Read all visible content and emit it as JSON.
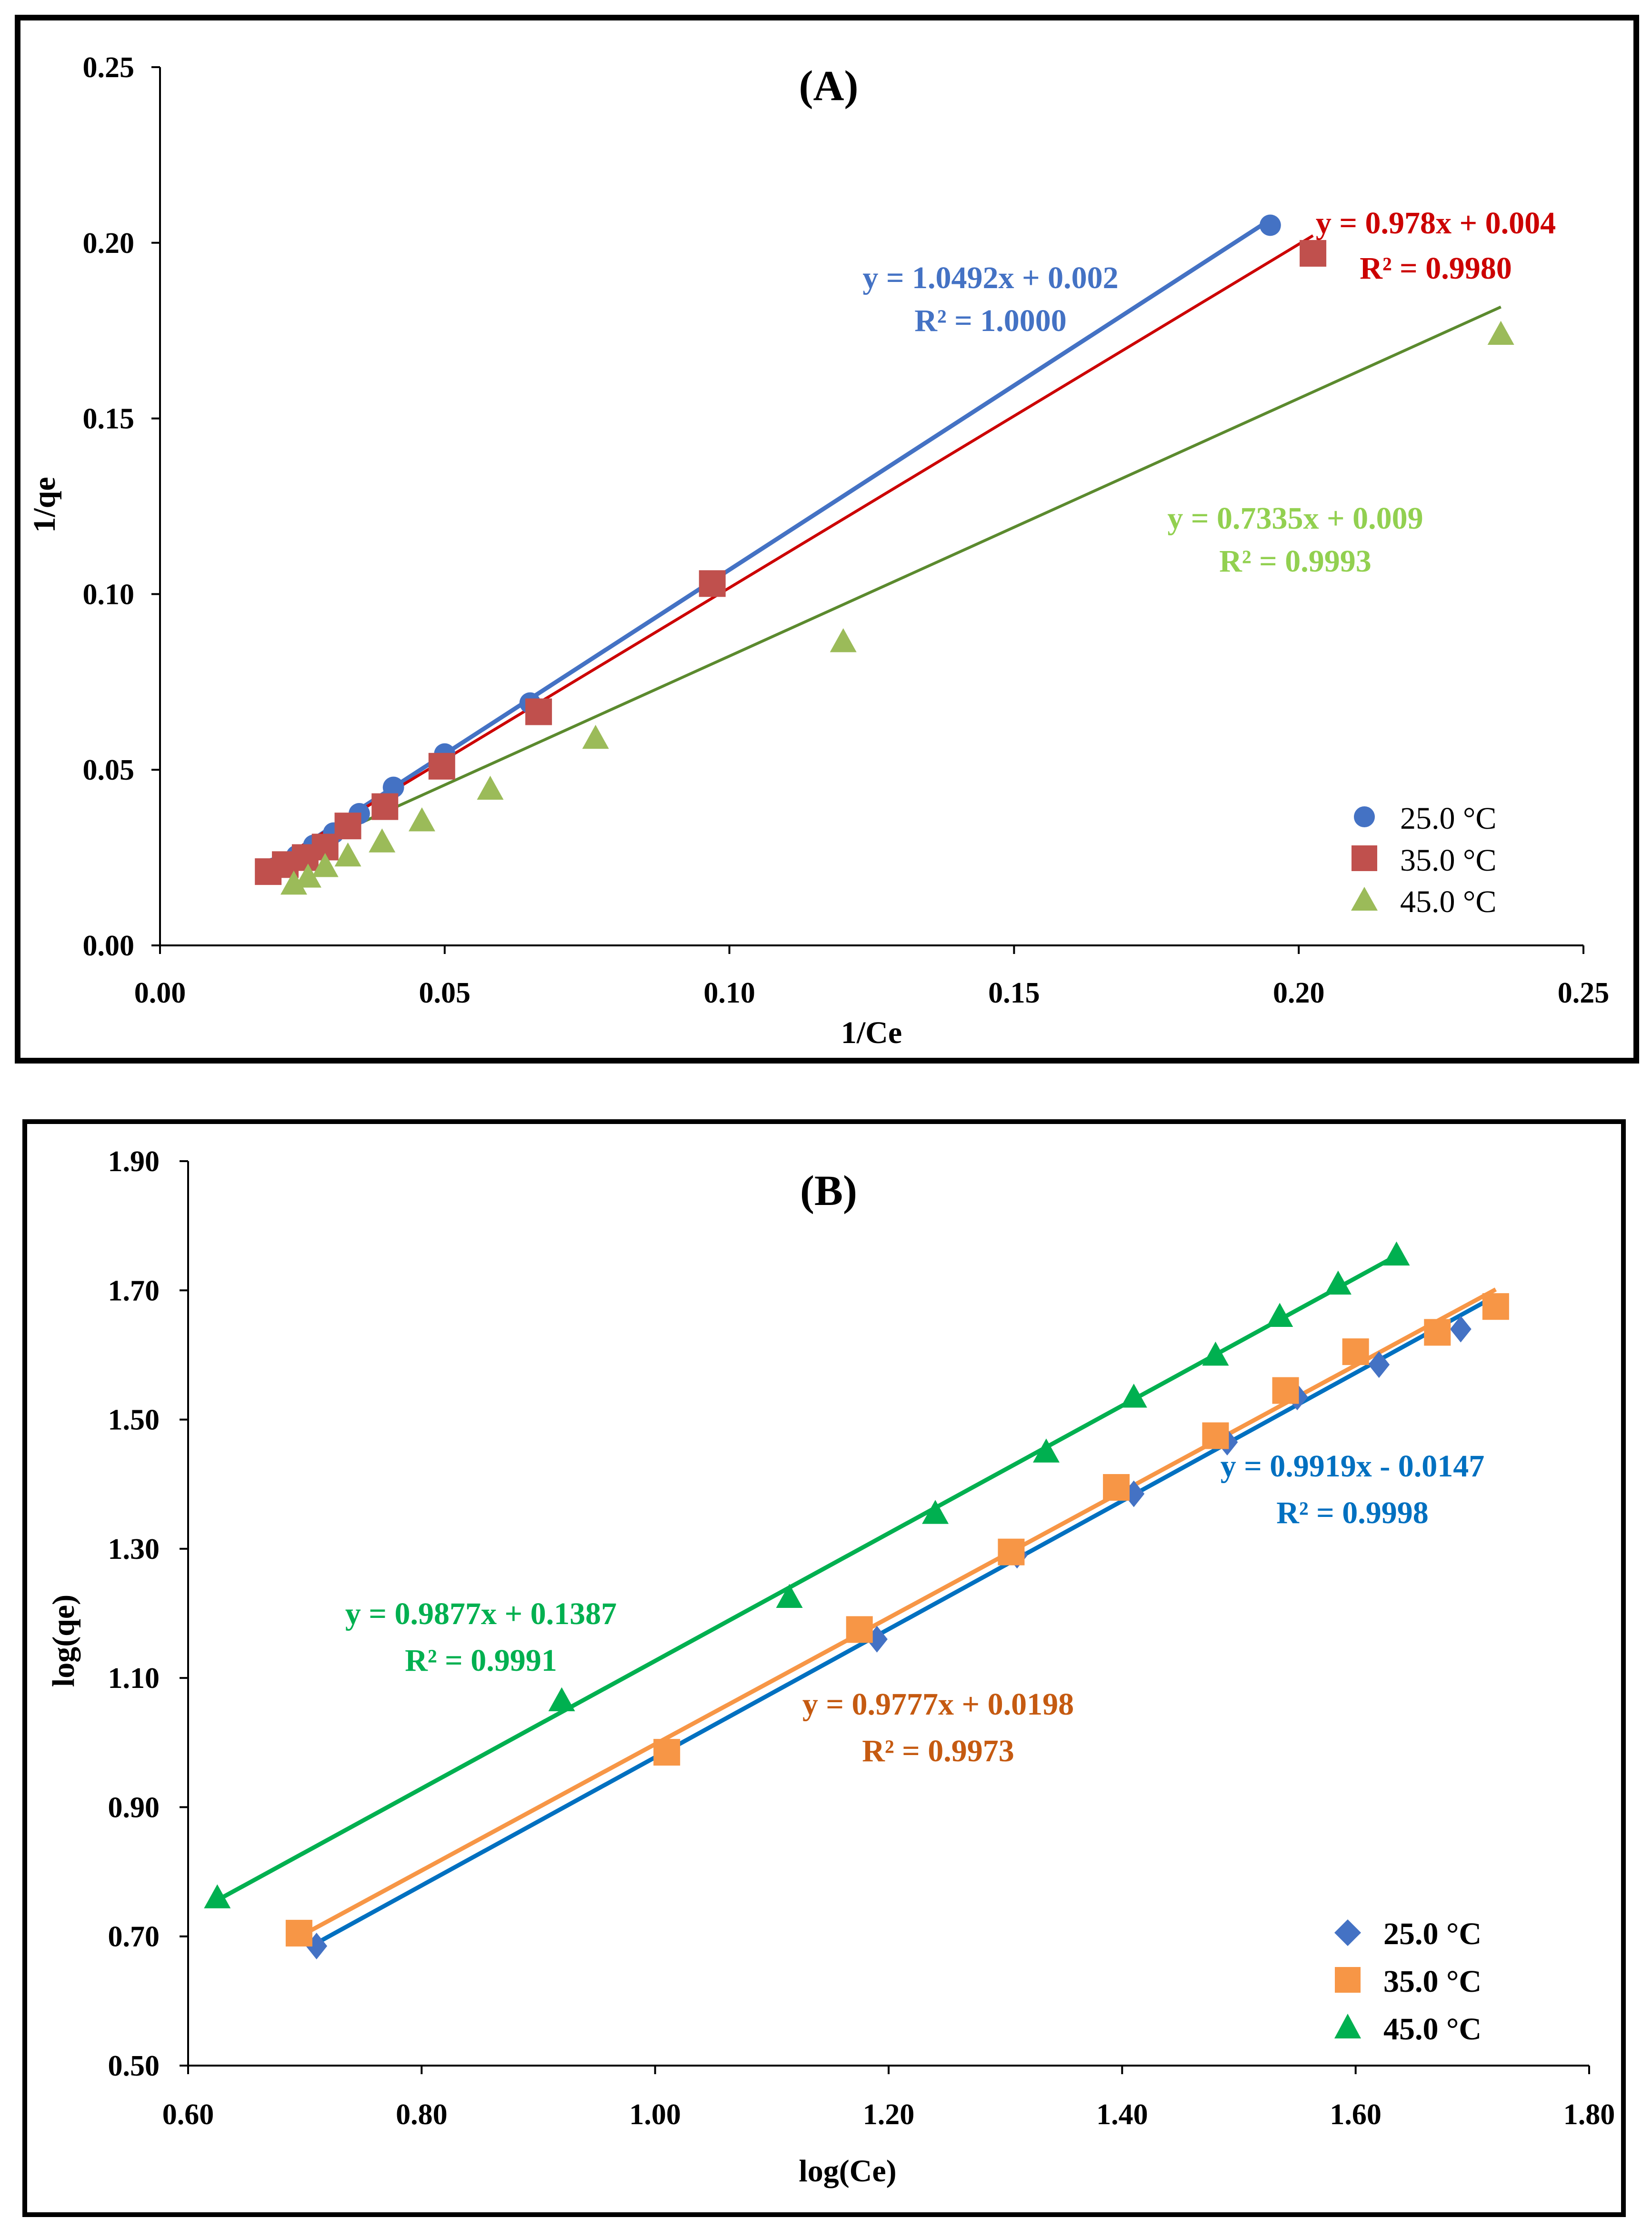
{
  "chart_data": [
    {
      "type": "scatter",
      "title": "(A)",
      "xlabel": "1/Ce",
      "ylabel": "1/qe",
      "xlim": [
        0,
        0.25
      ],
      "ylim": [
        0,
        0.25
      ],
      "xticks": [
        0,
        0.05,
        0.1,
        0.15,
        0.2,
        0.25
      ],
      "xtick_labels": [
        "0.00",
        "0.05",
        "0.10",
        "0.15",
        "0.20",
        "0.25"
      ],
      "yticks": [
        0,
        0.05,
        0.1,
        0.15,
        0.2,
        0.25
      ],
      "ytick_labels": [
        "0.00",
        "0.05",
        "0.10",
        "0.15",
        "0.20",
        "0.25"
      ],
      "legend_position": "bottom-right",
      "series": [
        {
          "name": "25.0 °C",
          "marker": "circle",
          "color": "#4472c4",
          "line_color": "#4472c4",
          "points": [
            [
              0.02,
              0.022
            ],
            [
              0.024,
              0.0255
            ],
            [
              0.027,
              0.0285
            ],
            [
              0.0305,
              0.032
            ],
            [
              0.035,
              0.0375
            ],
            [
              0.041,
              0.045
            ],
            [
              0.05,
              0.0545
            ],
            [
              0.065,
              0.069
            ],
            [
              0.097,
              0.103
            ],
            [
              0.195,
              0.205
            ]
          ],
          "fit": {
            "slope": 1.0492,
            "intercept": 0.002,
            "x_range": [
              0.019,
              0.195
            ]
          },
          "equation": "y = 1.0492x + 0.002",
          "r2": "R² = 1.0000",
          "label_color": "#4472c4"
        },
        {
          "name": "35.0 °C",
          "marker": "square",
          "color": "#c0504d",
          "line_color": "#cc0000",
          "points": [
            [
              0.019,
              0.021
            ],
            [
              0.022,
              0.023
            ],
            [
              0.0255,
              0.025
            ],
            [
              0.029,
              0.028
            ],
            [
              0.033,
              0.034
            ],
            [
              0.0395,
              0.0395
            ],
            [
              0.0495,
              0.051
            ],
            [
              0.0665,
              0.0665
            ],
            [
              0.097,
              0.103
            ],
            [
              0.2025,
              0.197
            ]
          ],
          "fit": {
            "slope": 0.978,
            "intercept": 0.004,
            "x_range": [
              0.019,
              0.2025
            ]
          },
          "equation": "y = 0.978x + 0.004",
          "r2": "R² = 0.9980",
          "label_color": "#cc0000"
        },
        {
          "name": "45.0 °C",
          "marker": "triangle",
          "color": "#9bbb59",
          "line_color": "#5b8a2e",
          "points": [
            [
              0.0235,
              0.0175
            ],
            [
              0.026,
              0.0195
            ],
            [
              0.029,
              0.0225
            ],
            [
              0.033,
              0.0255
            ],
            [
              0.039,
              0.0295
            ],
            [
              0.046,
              0.0355
            ],
            [
              0.058,
              0.0445
            ],
            [
              0.0765,
              0.059
            ],
            [
              0.12,
              0.0865
            ],
            [
              0.2355,
              0.174
            ]
          ],
          "fit": {
            "slope": 0.7335,
            "intercept": 0.009,
            "x_range": [
              0.0235,
              0.2355
            ]
          },
          "equation": "y = 0.7335x + 0.009",
          "r2": "R² = 0.9993",
          "label_color": "#92d050"
        }
      ]
    },
    {
      "type": "scatter",
      "title": "(B)",
      "xlabel": "log(Ce)",
      "ylabel": "log(qe)",
      "xlim": [
        0.6,
        1.8
      ],
      "ylim": [
        0.5,
        1.9
      ],
      "xticks": [
        0.6,
        0.8,
        1.0,
        1.2,
        1.4,
        1.6,
        1.8
      ],
      "xtick_labels": [
        "0.60",
        "0.80",
        "1.00",
        "1.20",
        "1.40",
        "1.60",
        "1.80"
      ],
      "yticks": [
        0.5,
        0.7,
        0.9,
        1.1,
        1.3,
        1.5,
        1.7,
        1.9
      ],
      "ytick_labels": [
        "0.50",
        "0.70",
        "0.90",
        "1.10",
        "1.30",
        "1.50",
        "1.70",
        "1.90"
      ],
      "legend_position": "bottom-right",
      "series": [
        {
          "name": "25.0 °C",
          "marker": "diamond",
          "color": "#4472c4",
          "line_color": "#0070c0",
          "points": [
            [
              0.71,
              0.685
            ],
            [
              1.19,
              1.16
            ],
            [
              1.31,
              1.29
            ],
            [
              1.41,
              1.385
            ],
            [
              1.49,
              1.465
            ],
            [
              1.55,
              1.535
            ],
            [
              1.62,
              1.585
            ],
            [
              1.69,
              1.64
            ],
            [
              1.72,
              1.675
            ]
          ],
          "fit": {
            "slope": 0.9919,
            "intercept": -0.0147,
            "x_range": [
              0.71,
              1.72
            ]
          },
          "equation": "y = 0.9919x - 0.0147",
          "r2": "R² = 0.9998",
          "label_color": "#0070c0"
        },
        {
          "name": "35.0 °C",
          "marker": "square",
          "color": "#f79646",
          "line_color": "#f79646",
          "points": [
            [
              0.695,
              0.705
            ],
            [
              1.01,
              0.985
            ],
            [
              1.175,
              1.175
            ],
            [
              1.305,
              1.295
            ],
            [
              1.395,
              1.395
            ],
            [
              1.48,
              1.475
            ],
            [
              1.54,
              1.545
            ],
            [
              1.6,
              1.605
            ],
            [
              1.67,
              1.635
            ],
            [
              1.72,
              1.675
            ]
          ],
          "fit": {
            "slope": 0.9777,
            "intercept": 0.0198,
            "x_range": [
              0.695,
              1.72
            ]
          },
          "equation": "y = 0.9777x + 0.0198",
          "r2": "R² = 0.9973",
          "label_color": "#c55a11"
        },
        {
          "name": "45.0 °C",
          "marker": "triangle",
          "color": "#00b050",
          "line_color": "#00b050",
          "points": [
            [
              0.625,
              0.76
            ],
            [
              0.92,
              1.065
            ],
            [
              1.115,
              1.225
            ],
            [
              1.24,
              1.355
            ],
            [
              1.335,
              1.45
            ],
            [
              1.41,
              1.535
            ],
            [
              1.48,
              1.6
            ],
            [
              1.535,
              1.66
            ],
            [
              1.585,
              1.71
            ],
            [
              1.635,
              1.755
            ]
          ],
          "fit": {
            "slope": 0.9877,
            "intercept": 0.1387,
            "x_range": [
              0.625,
              1.635
            ]
          },
          "equation": "y = 0.9877x + 0.1387",
          "r2": "R² = 0.9991",
          "label_color": "#00b050"
        }
      ]
    }
  ]
}
